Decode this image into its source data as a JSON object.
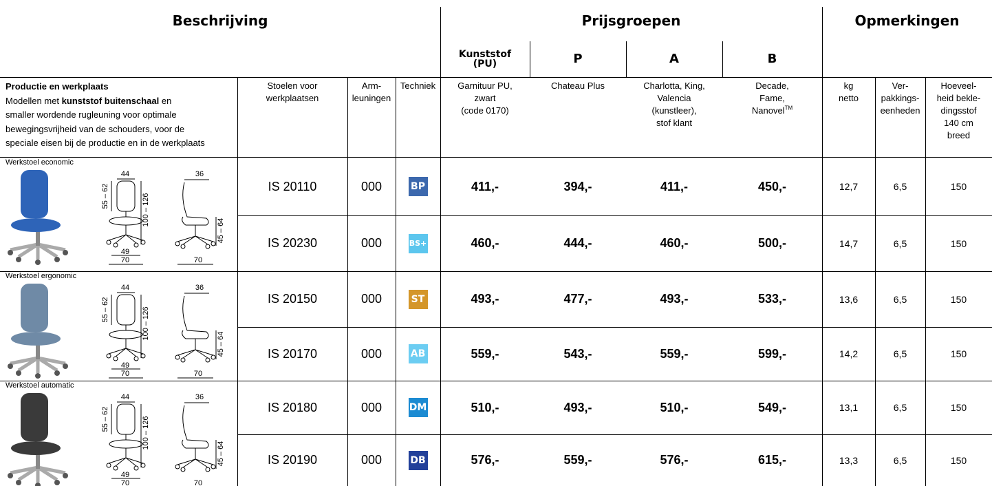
{
  "header": {
    "description": "Beschrijving",
    "price_groups": "Prijsgroepen",
    "remarks": "Opmerkingen"
  },
  "price_columns": [
    "Kunststof\n(PU)",
    "P",
    "A",
    "B"
  ],
  "intro": {
    "title": "Productie en werkplaats",
    "text_before": "Modellen met ",
    "bold": "kunststof buitenschaal",
    "text_after": " en\nsmaller wordende rugleuning voor optimale\nbewegingsvrijheid van de schouders, voor de\nspeciale eisen bij de productie en in de werkplaats"
  },
  "column_headers": {
    "chairs": "Stoelen voor\nwerkplaatsen",
    "armrests": "Arm-\nleuningen",
    "technique": "Techniek",
    "kg": "kg\nnetto",
    "packaging": "Ver-\npakkings-\neenheden",
    "fabric": "Hoeveel-\nheid bekle-\ndingsstof\n140 cm\nbreed"
  },
  "price_descriptions": [
    {
      "text": "Garnituur PU,\nzwart\n(code 0170)"
    },
    {
      "text": "Chateau Plus"
    },
    {
      "text": "Charlotta, King,\nValencia\n(kunstleer),\nstof klant"
    },
    {
      "text": "Decade,\nFame,\nNanovel",
      "sup": "TM"
    }
  ],
  "groups": [
    {
      "name": "Werkstoel economic",
      "dims": {
        "top": "44",
        "seat": "55 – 62",
        "height": "100 – 126",
        "base": "49",
        "width": "70",
        "side_top": "36",
        "side_height": "45 – 64",
        "side_width": "70"
      },
      "rows": [
        {
          "code": "IS 20110",
          "armrests": "000",
          "technique": "BP",
          "technique_color": "#3c68ad",
          "prices": [
            "411,-",
            "394,-",
            "411,-",
            "450,-"
          ],
          "kg": "12,7",
          "packaging": "6,5",
          "fabric": "150"
        },
        {
          "code": "IS 20230",
          "armrests": "000",
          "technique": "BS+",
          "technique_color": "#5cc6ee",
          "prices": [
            "460,-",
            "444,-",
            "460,-",
            "500,-"
          ],
          "kg": "14,7",
          "packaging": "6,5",
          "fabric": "150"
        }
      ]
    },
    {
      "name": "Werkstoel ergonomic",
      "dims": {
        "top": "44",
        "seat": "55 – 62",
        "height": "100 – 126",
        "base": "49",
        "width": "70",
        "side_top": "36",
        "side_height": "45 – 64",
        "side_width": "70"
      },
      "rows": [
        {
          "code": "IS 20150",
          "armrests": "000",
          "technique": "ST",
          "technique_color": "#d4962a",
          "prices": [
            "493,-",
            "477,-",
            "493,-",
            "533,-"
          ],
          "kg": "13,6",
          "packaging": "6,5",
          "fabric": "150"
        },
        {
          "code": "IS 20170",
          "armrests": "000",
          "technique": "AB",
          "technique_color": "#6ccdf2",
          "prices": [
            "559,-",
            "543,-",
            "559,-",
            "599,-"
          ],
          "kg": "14,2",
          "packaging": "6,5",
          "fabric": "150"
        }
      ]
    },
    {
      "name": "Werkstoel automatic",
      "dims": {
        "top": "44",
        "seat": "55 – 62",
        "height": "100 – 126",
        "base": "49",
        "width": "70",
        "side_top": "36",
        "side_height": "45 – 64",
        "side_width": "70"
      },
      "rows": [
        {
          "code": "IS 20180",
          "armrests": "000",
          "technique": "DM",
          "technique_color": "#1c8bd2",
          "prices": [
            "510,-",
            "493,-",
            "510,-",
            "549,-"
          ],
          "kg": "13,1",
          "packaging": "6,5",
          "fabric": "150"
        },
        {
          "code": "IS 20190",
          "armrests": "000",
          "technique": "DB",
          "technique_color": "#22409a",
          "prices": [
            "576,-",
            "559,-",
            "576,-",
            "615,-"
          ],
          "kg": "13,3",
          "packaging": "6,5",
          "fabric": "150"
        }
      ]
    }
  ]
}
